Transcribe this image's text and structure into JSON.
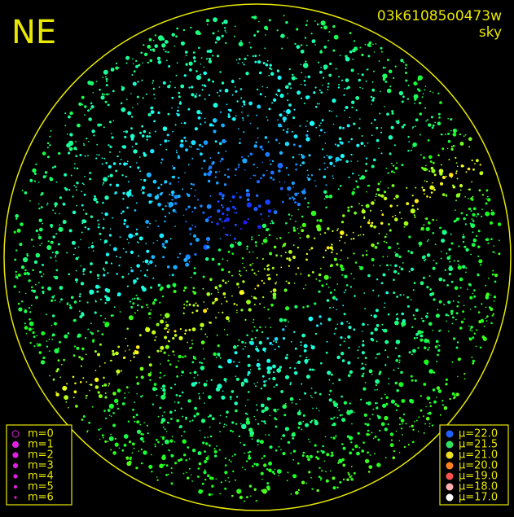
{
  "header": {
    "direction": "NE",
    "frame_id": "03k61085o0473w",
    "mode": "sky"
  },
  "magnitude_legend": [
    "m=0",
    "m=1",
    "m=2",
    "m=3",
    "m=4",
    "m=5",
    "m=6"
  ],
  "brightness_legend": [
    "μ=22.0",
    "μ=21.5",
    "μ=21.0",
    "μ=20.0",
    "μ=19.0",
    "μ=18.0",
    "μ=17.0"
  ]
}
